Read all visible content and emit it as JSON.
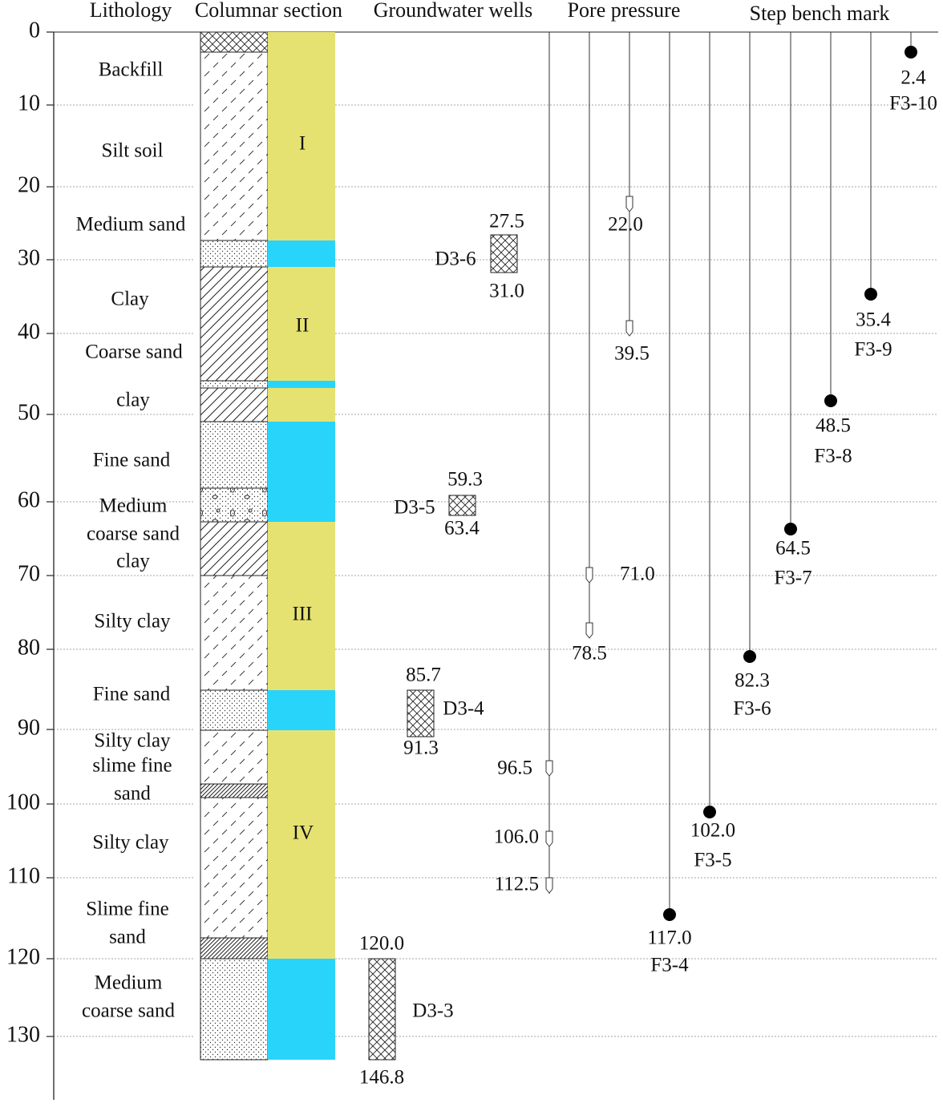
{
  "headers": [
    "Lithology",
    "Columnar section",
    "Groundwater wells",
    "Pore pressure",
    "Step bench mark"
  ],
  "depth_ticks": [
    0,
    10,
    20,
    30,
    40,
    50,
    60,
    70,
    80,
    90,
    100,
    110,
    120,
    130
  ],
  "lithology": [
    [
      "Backfill"
    ],
    [
      "Silt soil"
    ],
    [
      "Medium sand"
    ],
    [
      "Clay"
    ],
    [
      "Coarse sand"
    ],
    [
      "clay"
    ],
    [
      "Fine sand"
    ],
    [
      "Medium",
      "coarse sand"
    ],
    [
      "clay"
    ],
    [
      "Silty clay"
    ],
    [
      "Fine sand"
    ],
    [
      "Silty clay",
      "slime fine",
      "sand"
    ],
    [
      "Silty clay"
    ],
    [
      "Slime fine",
      "sand"
    ],
    [
      "Medium",
      "coarse sand"
    ]
  ],
  "strata": [
    "I",
    "II",
    "III",
    "IV"
  ],
  "wells": [
    {
      "name": "D3-6",
      "top": "27.5",
      "bottom": "31.0"
    },
    {
      "name": "D3-5",
      "top": "59.3",
      "bottom": "63.4"
    },
    {
      "name": "D3-4",
      "top": "85.7",
      "bottom": "91.3"
    },
    {
      "name": "D3-3",
      "top": "120.0",
      "bottom": "146.8"
    }
  ],
  "pore_pressure": [
    "22.0",
    "39.5",
    "71.0",
    "78.5",
    "96.5",
    "106.0",
    "112.5"
  ],
  "bench_marks": [
    {
      "depth": "2.4",
      "name": "F3-10"
    },
    {
      "depth": "35.4",
      "name": "F3-9"
    },
    {
      "depth": "48.5",
      "name": "F3-8"
    },
    {
      "depth": "64.5",
      "name": "F3-7"
    },
    {
      "depth": "82.3",
      "name": "F3-6"
    },
    {
      "depth": "102.0",
      "name": "F3-5"
    },
    {
      "depth": "117.0",
      "name": "F3-4"
    }
  ]
}
